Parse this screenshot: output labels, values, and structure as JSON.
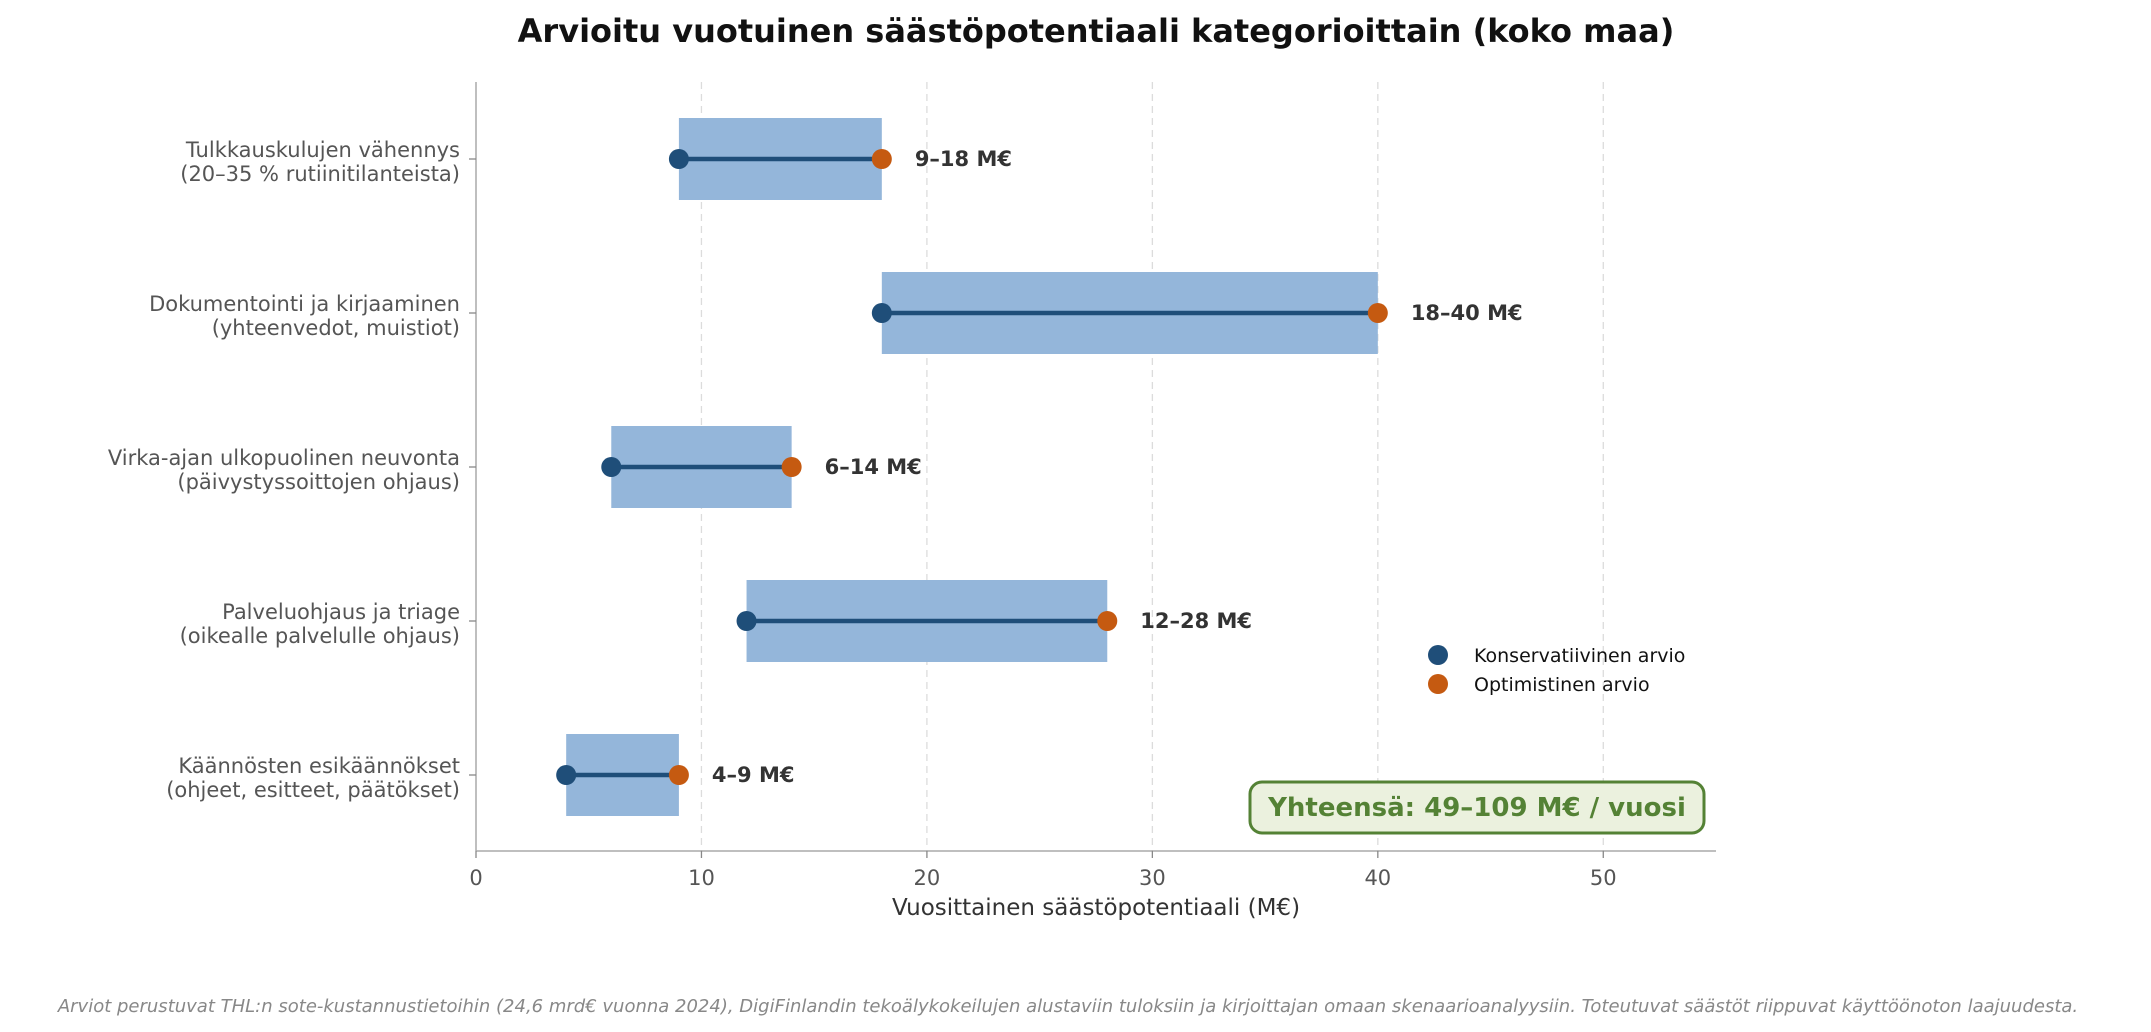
{
  "chart_data": {
    "type": "bar",
    "title": "Arvioitu vuotuinen säästöpotentiaali kategorioittain (koko maa)",
    "xlabel": "Vuosittainen säästöpotentiaali (M€)",
    "xlim": [
      0,
      55
    ],
    "xticks": [
      0,
      10,
      20,
      30,
      40,
      50
    ],
    "grid": "x-dashed",
    "categories": [
      {
        "line1": "Tulkkauskulujen vähennys",
        "line2": "(20–35 % rutiinitilanteista)",
        "low": 9,
        "high": 18,
        "label": "9–18 M€"
      },
      {
        "line1": "Dokumentointi ja kirjaaminen",
        "line2": "(yhteenvedot, muistiot)",
        "low": 18,
        "high": 40,
        "label": "18–40 M€"
      },
      {
        "line1": "Virka-ajan ulkopuolinen neuvonta",
        "line2": "(päivystyssoittojen ohjaus)",
        "low": 6,
        "high": 14,
        "label": "6–14 M€"
      },
      {
        "line1": "Palveluohjaus ja triage",
        "line2": "(oikealle palvelulle ohjaus)",
        "low": 12,
        "high": 28,
        "label": "12–28 M€"
      },
      {
        "line1": "Käännösten esikäännökset",
        "line2": "(ohjeet, esitteet, päätökset)",
        "low": 4,
        "high": 9,
        "label": "4–9 M€"
      }
    ],
    "series": [
      {
        "name": "Konservatiivinen arvio",
        "key": "low",
        "color": "#1f4e79"
      },
      {
        "name": "Optimistinen arvio",
        "key": "high",
        "color": "#c55a11"
      }
    ],
    "legend_position": "lower-right",
    "total_box": "Yhteensä: 49–109 M€ / vuosi",
    "footnote": "Arviot perustuvat THL:n sote-kustannustietoihin (24,6 mrd€ vuonna 2024), DigiFinlandin tekoälykokeilujen alustaviin tuloksiin ja kirjoittajan omaan skenaarioanalyysiin. Toteutuvat säästöt riippuvat käyttöönoton laajuudesta.",
    "colors": {
      "range_bar": "#94b6da",
      "connector": "#1f4e79",
      "total_text": "#548235",
      "total_border": "#548235",
      "total_fill": "#ebf1de"
    }
  }
}
